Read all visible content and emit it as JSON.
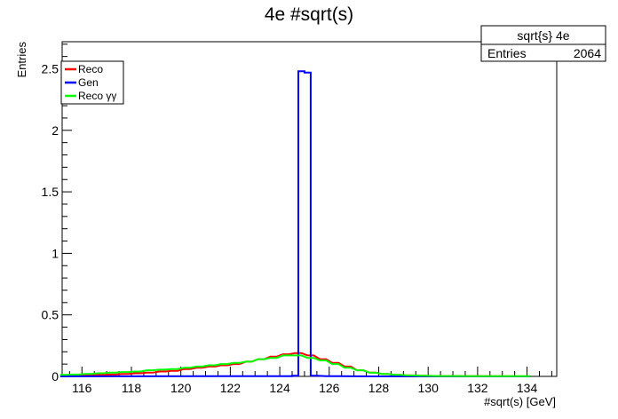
{
  "chart_data": {
    "type": "line",
    "title": "4e #sqrt(s)",
    "xlabel": "#sqrt(s) [GeV]",
    "ylabel": "Entries",
    "xlim": [
      115.2,
      135.2
    ],
    "ylim": [
      0,
      2.72
    ],
    "x_ticks": [
      "116",
      "118",
      "120",
      "122",
      "124",
      "126",
      "128",
      "130",
      "132",
      "134"
    ],
    "y_ticks": [
      "0",
      "0.5",
      "1",
      "1.5",
      "2",
      "2.5"
    ],
    "bin_width": 0.25,
    "grid": false,
    "legend": {
      "placement": "top-left",
      "entries": [
        {
          "label": "Reco",
          "color": "#ff0000"
        },
        {
          "label": "Gen",
          "color": "#0000ff"
        },
        {
          "label": "Reco γγ",
          "color": "#00ff00"
        }
      ]
    },
    "stats_box": {
      "title": "sqrt{s} 4e",
      "entries_label": "Entries",
      "entries_value": "2064"
    },
    "series": [
      {
        "name": "Reco",
        "color": "#ff0000",
        "x": [
          115.25,
          115.75,
          116.25,
          116.75,
          117.25,
          117.75,
          118.25,
          118.75,
          119.25,
          119.75,
          120.25,
          120.75,
          121.25,
          121.75,
          122.25,
          122.75,
          123.25,
          123.75,
          124.25,
          124.75,
          125.25,
          125.75,
          126.25,
          126.75,
          127.25,
          127.75,
          128.25,
          128.75,
          129.25,
          129.75,
          130.5,
          132,
          134
        ],
        "values": [
          0.005,
          0.008,
          0.01,
          0.012,
          0.015,
          0.02,
          0.025,
          0.03,
          0.04,
          0.045,
          0.06,
          0.07,
          0.08,
          0.09,
          0.1,
          0.12,
          0.14,
          0.16,
          0.18,
          0.19,
          0.17,
          0.14,
          0.11,
          0.08,
          0.05,
          0.03,
          0.02,
          0.012,
          0.008,
          0.005,
          0.003,
          0.002,
          0.001
        ]
      },
      {
        "name": "Gen",
        "color": "#0000ff",
        "x": [
          115.25,
          124.375,
          124.625,
          124.875,
          125.125,
          125.375,
          126,
          128,
          134
        ],
        "values": [
          0,
          0.002,
          0.005,
          2.48,
          2.47,
          0.005,
          0.002,
          0,
          0
        ]
      },
      {
        "name": "Reco γγ",
        "color": "#00ff00",
        "x": [
          115.25,
          115.75,
          116.25,
          116.75,
          117.25,
          117.75,
          118.25,
          118.75,
          119.25,
          119.75,
          120.25,
          120.75,
          121.25,
          121.75,
          122.25,
          122.75,
          123.25,
          123.75,
          124.25,
          124.75,
          125.25,
          125.75,
          126.25,
          126.75,
          127.25,
          127.75,
          128.25,
          128.75,
          129.25,
          129.75,
          130.5,
          132,
          134
        ],
        "values": [
          0.012,
          0.015,
          0.02,
          0.025,
          0.03,
          0.035,
          0.04,
          0.05,
          0.055,
          0.06,
          0.07,
          0.08,
          0.09,
          0.1,
          0.11,
          0.12,
          0.14,
          0.15,
          0.17,
          0.17,
          0.15,
          0.13,
          0.1,
          0.07,
          0.05,
          0.03,
          0.02,
          0.012,
          0.008,
          0.005,
          0.003,
          0.002,
          0.002
        ]
      }
    ]
  }
}
